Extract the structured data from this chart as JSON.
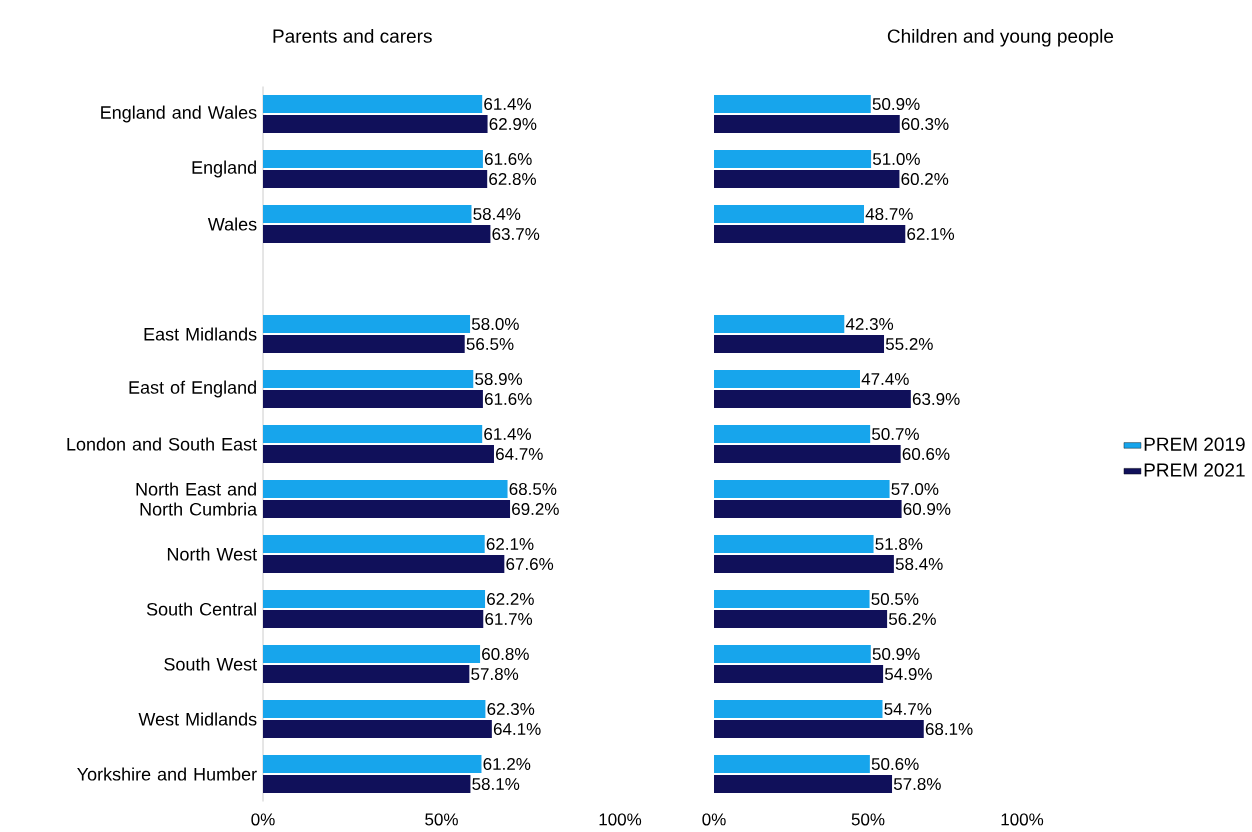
{
  "chart_data": [
    {
      "type": "bar",
      "orientation": "horizontal",
      "title": "Parents and carers",
      "categories": [
        "England and Wales",
        "England",
        "Wales",
        null,
        "East Midlands",
        "East of England",
        "London and South East",
        "North East and North Cumbria",
        "North West",
        "South Central",
        "South West",
        "West Midlands",
        "Yorkshire and Humber"
      ],
      "series": [
        {
          "color": "#17a5ec",
          "values": [
            61.4,
            61.6,
            58.4,
            null,
            58.0,
            58.9,
            61.4,
            68.5,
            62.1,
            62.2,
            60.8,
            62.3,
            61.2
          ],
          "value_labels": [
            "61.4%",
            "61.6%",
            "58.4%",
            null,
            "58.0%",
            "58.9%",
            "61.4%",
            "68.5%",
            "62.1%",
            "62.2%",
            "60.8%",
            "62.3%",
            "61.2%"
          ]
        },
        {
          "color": "#10105a",
          "values": [
            62.9,
            62.8,
            63.7,
            null,
            56.5,
            61.6,
            64.7,
            69.2,
            67.6,
            61.7,
            57.8,
            64.1,
            58.1
          ],
          "value_labels": [
            "62.9%",
            "62.8%",
            "63.7%",
            null,
            "56.5%",
            "61.6%",
            "64.7%",
            "69.2%",
            "67.6%",
            "61.7%",
            "57.8%",
            "64.1%",
            "58.1%"
          ]
        }
      ],
      "xlim": [
        0,
        100
      ],
      "xticks": [
        {
          "value": 0,
          "label": "0%"
        },
        {
          "value": 50,
          "label": "50%"
        },
        {
          "value": 100,
          "label": "100%"
        }
      ]
    },
    {
      "type": "bar",
      "orientation": "horizontal",
      "title": "Children and young people",
      "categories": [
        null,
        null,
        null,
        null,
        null,
        null,
        null,
        null,
        null,
        null,
        null,
        null,
        null
      ],
      "series": [
        {
          "name": "PREM 2019",
          "color": "#17a5ec",
          "values": [
            50.9,
            51.0,
            48.7,
            null,
            42.3,
            47.4,
            50.7,
            57.0,
            51.8,
            50.5,
            50.9,
            54.7,
            50.6
          ],
          "value_labels": [
            "50.9%",
            "51.0%",
            "48.7%",
            null,
            "42.3%",
            "47.4%",
            "50.7%",
            "57.0%",
            "51.8%",
            "50.5%",
            "50.9%",
            "54.7%",
            "50.6%"
          ]
        },
        {
          "name": "PREM 2021",
          "color": "#10105a",
          "values": [
            60.3,
            60.2,
            62.1,
            null,
            55.2,
            63.9,
            60.6,
            60.9,
            58.4,
            56.2,
            54.9,
            68.1,
            57.8
          ],
          "value_labels": [
            "60.3%",
            "60.2%",
            "62.1%",
            null,
            "55.2%",
            "63.9%",
            "60.6%",
            "60.9%",
            "58.4%",
            "56.2%",
            "54.9%",
            "68.1%",
            "57.8%"
          ]
        }
      ],
      "xlim": [
        0,
        100
      ],
      "xticks": [
        {
          "value": 0,
          "label": "0%"
        },
        {
          "value": 50,
          "label": "50%"
        },
        {
          "value": 100,
          "label": "100%"
        }
      ],
      "tick_labels": "x",
      "legend": "right"
    }
  ]
}
